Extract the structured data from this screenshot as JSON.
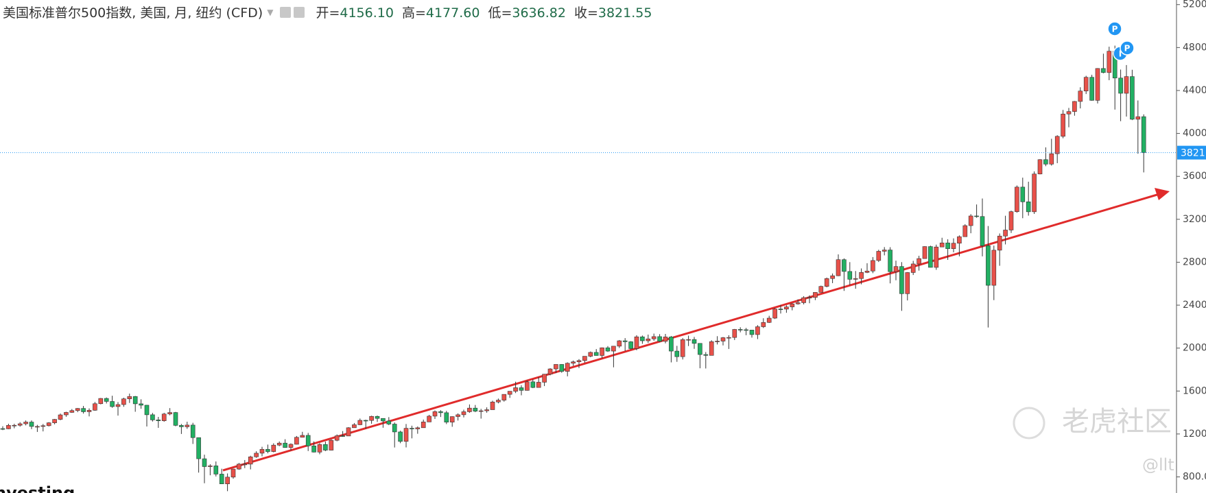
{
  "chart_data": {
    "type": "candlestick",
    "header": {
      "title": "美国标准普尔500指数, 美国, 月, 纽约 (CFD)",
      "fields": [
        {
          "label": "开=",
          "value": "4156.10"
        },
        {
          "label": "高=",
          "value": "4177.60"
        },
        {
          "label": "低=",
          "value": "3636.82"
        },
        {
          "label": "收=",
          "value": "3821.55"
        }
      ]
    },
    "up_color": "#e8514a",
    "down_color": "#22b063",
    "open": [
      1250,
      1248,
      1280,
      1281,
      1295,
      1311,
      1270,
      1270,
      1277,
      1304,
      1336,
      1378,
      1401,
      1418,
      1438,
      1407,
      1421,
      1482,
      1531,
      1503,
      1455,
      1474,
      1527,
      1549,
      1481,
      1468,
      1379,
      1331,
      1323,
      1386,
      1400,
      1280,
      1267,
      1283,
      1166,
      969,
      896,
      903,
      826,
      735,
      798,
      873,
      919,
      919,
      987,
      1021,
      1057,
      1036,
      1096,
      1115,
      1074,
      1104,
      1169,
      1187,
      1089,
      1031,
      1102,
      1049,
      1141,
      1183,
      1181,
      1258,
      1286,
      1327,
      1326,
      1364,
      1345,
      1321,
      1292,
      1219,
      1131,
      1253,
      1247,
      1258,
      1312,
      1366,
      1408,
      1398,
      1310,
      1362,
      1379,
      1407,
      1441,
      1412,
      1416,
      1426,
      1498,
      1515,
      1569,
      1598,
      1631,
      1606,
      1686,
      1633,
      1682,
      1757,
      1806,
      1848,
      1783,
      1859,
      1872,
      1884,
      1924,
      1960,
      1931,
      2003,
      1972,
      2018,
      2068,
      2059,
      1995,
      2105,
      2068,
      2086,
      2107,
      2063,
      2104,
      1972,
      1920,
      2079,
      2080,
      2044,
      1940,
      1932,
      2060,
      2065,
      2097,
      2099,
      2174,
      2171,
      2168,
      2126,
      2199,
      2239,
      2279,
      2364,
      2363,
      2384,
      2412,
      2423,
      2470,
      2472,
      2519,
      2575,
      2648,
      2674,
      2824,
      2714,
      2641,
      2648,
      2705,
      2718,
      2816,
      2902,
      2914,
      2712,
      2760,
      2507,
      2704,
      2784,
      2834,
      2946,
      2752,
      2942,
      2980,
      2926,
      2977,
      3038,
      3141,
      3231,
      3226,
      2954,
      2585,
      2912,
      3044,
      3100,
      3271,
      3500,
      3363,
      3270,
      3622,
      3756,
      3714,
      3811,
      3973,
      4181,
      4204,
      4298,
      4395,
      4523,
      4308,
      4605,
      4567,
      4766,
      4516,
      4374,
      4530,
      4132,
      4156.1
    ],
    "high": [
      1272,
      1295,
      1295,
      1310,
      1326,
      1326,
      1285,
      1293,
      1310,
      1340,
      1390,
      1407,
      1432,
      1441,
      1461,
      1438,
      1498,
      1535,
      1540,
      1556,
      1497,
      1538,
      1576,
      1554,
      1523,
      1471,
      1396,
      1359,
      1397,
      1441,
      1405,
      1293,
      1314,
      1304,
      1167,
      1007,
      918,
      944,
      876,
      832,
      876,
      930,
      957,
      997,
      1039,
      1080,
      1101,
      1113,
      1130,
      1151,
      1112,
      1181,
      1220,
      1210,
      1131,
      1115,
      1129,
      1150,
      1196,
      1227,
      1263,
      1302,
      1344,
      1333,
      1370,
      1371,
      1346,
      1357,
      1307,
      1230,
      1293,
      1277,
      1270,
      1334,
      1378,
      1420,
      1422,
      1415,
      1364,
      1392,
      1426,
      1475,
      1470,
      1434,
      1448,
      1510,
      1530,
      1570,
      1598,
      1687,
      1654,
      1698,
      1709,
      1730,
      1759,
      1813,
      1849,
      1850,
      1867,
      1884,
      1897,
      1924,
      1968,
      1991,
      2006,
      2019,
      2019,
      2075,
      2093,
      2064,
      2120,
      2117,
      2126,
      2135,
      2130,
      2132,
      2113,
      2021,
      2094,
      2116,
      2104,
      2045,
      1963,
      2073,
      2111,
      2103,
      2120,
      2178,
      2194,
      2188,
      2170,
      2214,
      2278,
      2301,
      2372,
      2401,
      2399,
      2419,
      2454,
      2484,
      2491,
      2520,
      2582,
      2657,
      2695,
      2873,
      2836,
      2801,
      2718,
      2742,
      2791,
      2848,
      2916,
      2941,
      2940,
      2815,
      2801,
      2708,
      2813,
      2860,
      2949,
      2954,
      2964,
      3028,
      3014,
      3022,
      3050,
      3154,
      3248,
      3338,
      3394,
      3137,
      2955,
      3068,
      3233,
      3280,
      3515,
      3588,
      3550,
      3646,
      3760,
      3870,
      3950,
      3983,
      4219,
      4238,
      4302,
      4430,
      4537,
      4546,
      4608,
      4743,
      4808,
      4818,
      4595,
      4637,
      4593,
      4307,
      4177.6
    ],
    "low": [
      1236,
      1245,
      1253,
      1268,
      1280,
      1245,
      1219,
      1224,
      1270,
      1290,
      1328,
      1360,
      1397,
      1403,
      1390,
      1364,
      1416,
      1476,
      1484,
      1444,
      1371,
      1453,
      1489,
      1407,
      1435,
      1270,
      1316,
      1257,
      1314,
      1374,
      1272,
      1200,
      1248,
      1107,
      840,
      741,
      815,
      804,
      734,
      667,
      783,
      866,
      882,
      870,
      978,
      992,
      1020,
      1029,
      1086,
      1071,
      1045,
      1102,
      1167,
      1041,
      1028,
      1011,
      1040,
      1047,
      1132,
      1173,
      1181,
      1257,
      1282,
      1249,
      1295,
      1312,
      1258,
      1282,
      1074,
      1114,
      1075,
      1159,
      1202,
      1258,
      1312,
      1340,
      1358,
      1292,
      1267,
      1325,
      1354,
      1397,
      1403,
      1343,
      1398,
      1426,
      1485,
      1501,
      1536,
      1581,
      1560,
      1604,
      1627,
      1633,
      1646,
      1746,
      1767,
      1770,
      1737,
      1834,
      1814,
      1863,
      1915,
      1930,
      1905,
      1964,
      1821,
      2001,
      1972,
      1988,
      1980,
      2040,
      2048,
      2068,
      2056,
      2044,
      1867,
      1872,
      1894,
      2019,
      1993,
      1812,
      1810,
      1932,
      2034,
      2025,
      1992,
      2075,
      2147,
      2120,
      2098,
      2084,
      2187,
      2234,
      2271,
      2322,
      2329,
      2352,
      2405,
      2407,
      2418,
      2447,
      2520,
      2566,
      2605,
      2670,
      2533,
      2586,
      2553,
      2594,
      2699,
      2698,
      2802,
      2864,
      2603,
      2632,
      2347,
      2444,
      2681,
      2722,
      2848,
      2751,
      2729,
      2952,
      2822,
      2892,
      2855,
      3036,
      3070,
      3214,
      2855,
      2192,
      2447,
      2767,
      2966,
      3073,
      3261,
      3210,
      3234,
      3250,
      3619,
      3695,
      3700,
      3723,
      3955,
      4057,
      4165,
      4233,
      4367,
      4305,
      4279,
      4560,
      4496,
      4222,
      4114,
      4157,
      4124,
      3811,
      3636.82
    ],
    "close": [
      1248,
      1280,
      1281,
      1295,
      1311,
      1270,
      1270,
      1277,
      1304,
      1336,
      1378,
      1401,
      1418,
      1438,
      1407,
      1421,
      1482,
      1531,
      1503,
      1455,
      1474,
      1527,
      1549,
      1481,
      1468,
      1379,
      1331,
      1323,
      1386,
      1400,
      1280,
      1267,
      1283,
      1166,
      969,
      896,
      903,
      826,
      735,
      798,
      873,
      919,
      919,
      987,
      1021,
      1057,
      1036,
      1096,
      1115,
      1074,
      1104,
      1169,
      1187,
      1089,
      1031,
      1102,
      1049,
      1141,
      1183,
      1181,
      1258,
      1286,
      1327,
      1326,
      1364,
      1345,
      1321,
      1292,
      1219,
      1131,
      1253,
      1247,
      1258,
      1312,
      1366,
      1408,
      1398,
      1310,
      1362,
      1379,
      1407,
      1441,
      1412,
      1416,
      1426,
      1498,
      1515,
      1569,
      1598,
      1631,
      1606,
      1686,
      1633,
      1682,
      1757,
      1806,
      1848,
      1783,
      1859,
      1872,
      1884,
      1924,
      1960,
      1931,
      2003,
      1972,
      2018,
      2068,
      2059,
      1995,
      2105,
      2068,
      2086,
      2107,
      2063,
      2104,
      1972,
      1920,
      2079,
      2080,
      2044,
      1940,
      1932,
      2060,
      2065,
      2097,
      2099,
      2174,
      2171,
      2168,
      2126,
      2199,
      2239,
      2279,
      2364,
      2363,
      2384,
      2412,
      2423,
      2470,
      2472,
      2519,
      2575,
      2648,
      2674,
      2824,
      2714,
      2641,
      2648,
      2705,
      2718,
      2816,
      2902,
      2914,
      2712,
      2760,
      2507,
      2704,
      2784,
      2834,
      2946,
      2752,
      2942,
      2980,
      2926,
      2977,
      3038,
      3141,
      3231,
      3226,
      2954,
      2585,
      2912,
      3044,
      3100,
      3271,
      3500,
      3363,
      3270,
      3622,
      3756,
      3714,
      3811,
      3973,
      4181,
      4204,
      4298,
      4395,
      4523,
      4308,
      4605,
      4567,
      4766,
      4516,
      4374,
      4530,
      4132,
      4156,
      3821.55
    ],
    "ylim": [
      650,
      5243
    ],
    "yticks": [
      {
        "value": 800,
        "label": "800.0"
      },
      1200,
      1600,
      2000,
      2400,
      2800,
      3200,
      3600,
      4000,
      4400,
      4800,
      5200
    ],
    "grid": false,
    "price_line": {
      "value": 3821,
      "label": "3821",
      "color": "#2196f3"
    },
    "markers": [
      "P",
      "I",
      "P"
    ],
    "watermark": {
      "brand": "老虎社区",
      "user": "@llt",
      "logo": "nvesting"
    }
  }
}
